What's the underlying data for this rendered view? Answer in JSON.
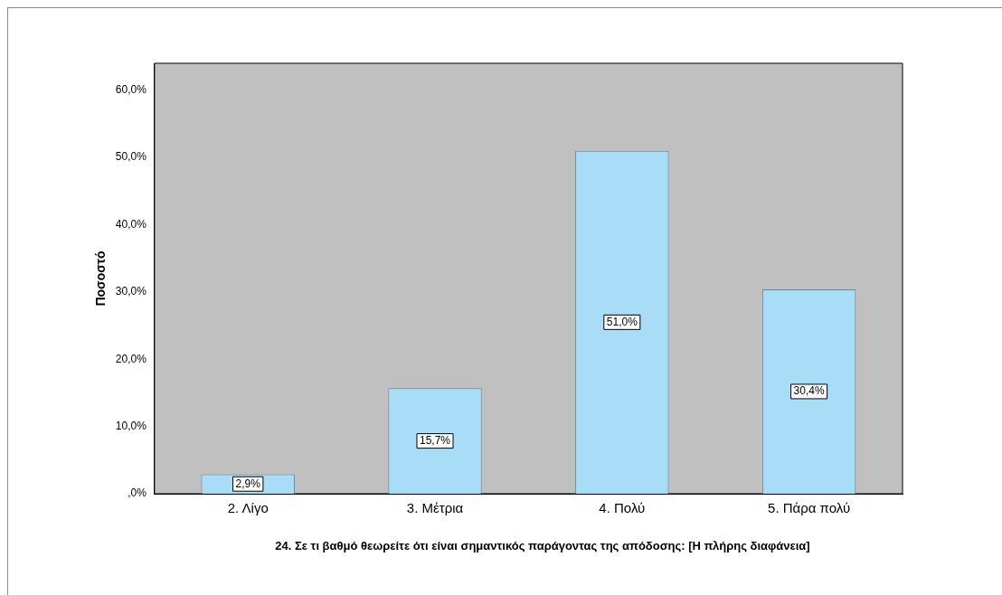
{
  "chart_data": {
    "type": "bar",
    "xlabel": "24. Σε τι βαθμό θεωρείτε ότι είναι σημαντικός παράγοντας της απόδοσης: [Η πλήρης διαφάνεια]",
    "ylabel": "Ποσοστό",
    "categories": [
      "2. Λίγο",
      "3. Μέτρια",
      "4. Πολύ",
      "5. Πάρα πολύ"
    ],
    "values": [
      2.9,
      15.7,
      51.0,
      30.4
    ],
    "color": "#a8dcf7",
    "value_labels": [
      "2,9%",
      "15,7%",
      "51,0%",
      "30,4%"
    ],
    "ylim": [
      0,
      64
    ],
    "yticks": [
      {
        "value": 0,
        "label": ",0%"
      },
      {
        "value": 10,
        "label": "10,0%"
      },
      {
        "value": 20,
        "label": "20,0%"
      },
      {
        "value": 30,
        "label": "30,0%"
      },
      {
        "value": 40,
        "label": "40,0%"
      },
      {
        "value": 50,
        "label": "50,0%"
      },
      {
        "value": 60,
        "label": "60,0%"
      }
    ],
    "grid": false,
    "legend": false
  }
}
